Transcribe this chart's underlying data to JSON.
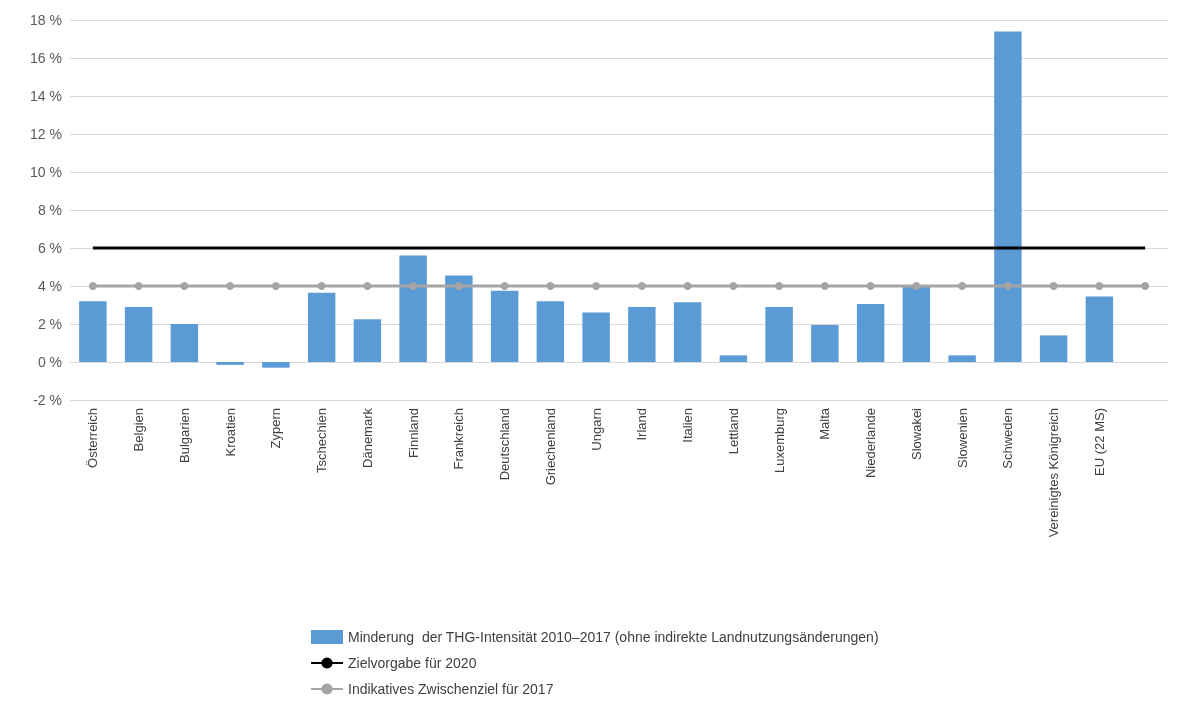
{
  "chart_data": {
    "type": "bar",
    "categories": [
      "Österreich",
      "Belgien",
      "Bulgarien",
      "Kroatien",
      "Zypern",
      "Tschechien",
      "Dänemark",
      "Finnland",
      "Frankreich",
      "Deutschland",
      "Griechenland",
      "Ungarn",
      "Irland",
      "Italien",
      "Lettland",
      "Luxemburg",
      "Malta",
      "Niederlande",
      "Slowakei",
      "Slowenien",
      "Schweden",
      "Vereinigtes Königreich",
      "EU (22 MS)",
      null
    ],
    "series": [
      {
        "name": "Minderung  der THG-Intensität 2010–2017 (ohne indirekte Landnutzungsänderungen)",
        "color": "#5b9bd5",
        "values": [
          3.2,
          2.9,
          2.0,
          -0.15,
          -0.3,
          3.65,
          2.25,
          5.6,
          4.55,
          3.75,
          3.2,
          2.6,
          2.9,
          3.15,
          0.35,
          2.9,
          1.95,
          3.05,
          4.0,
          0.35,
          17.4,
          1.4,
          3.45,
          null
        ]
      },
      {
        "name": "Zielvorgabe für 2020",
        "type": "line",
        "color": "#000000",
        "marker": "none",
        "values": [
          6,
          6,
          6,
          6,
          6,
          6,
          6,
          6,
          6,
          6,
          6,
          6,
          6,
          6,
          6,
          6,
          6,
          6,
          6,
          6,
          6,
          6,
          6,
          6
        ]
      },
      {
        "name": "Indikatives Zwischenziel für 2017",
        "type": "line",
        "color": "#a5a5a5",
        "marker": "circle",
        "values": [
          4,
          4,
          4,
          4,
          4,
          4,
          4,
          4,
          4,
          4,
          4,
          4,
          4,
          4,
          4,
          4,
          4,
          4,
          4,
          4,
          4,
          4,
          4,
          4
        ]
      }
    ],
    "ylim": [
      -2,
      18
    ],
    "yticks": [
      {
        "value": -2,
        "label": "-2 %"
      },
      {
        "value": 0,
        "label": "0 %"
      },
      {
        "value": 2,
        "label": "2 %"
      },
      {
        "value": 4,
        "label": "4 %"
      },
      {
        "value": 6,
        "label": "6 %"
      },
      {
        "value": 8,
        "label": "8 %"
      },
      {
        "value": 10,
        "label": "10 %"
      },
      {
        "value": 12,
        "label": "12 %"
      },
      {
        "value": 14,
        "label": "14 %"
      },
      {
        "value": 16,
        "label": "16 %"
      },
      {
        "value": 18,
        "label": "18 %"
      }
    ],
    "grid": "y",
    "legend": "bottom"
  }
}
